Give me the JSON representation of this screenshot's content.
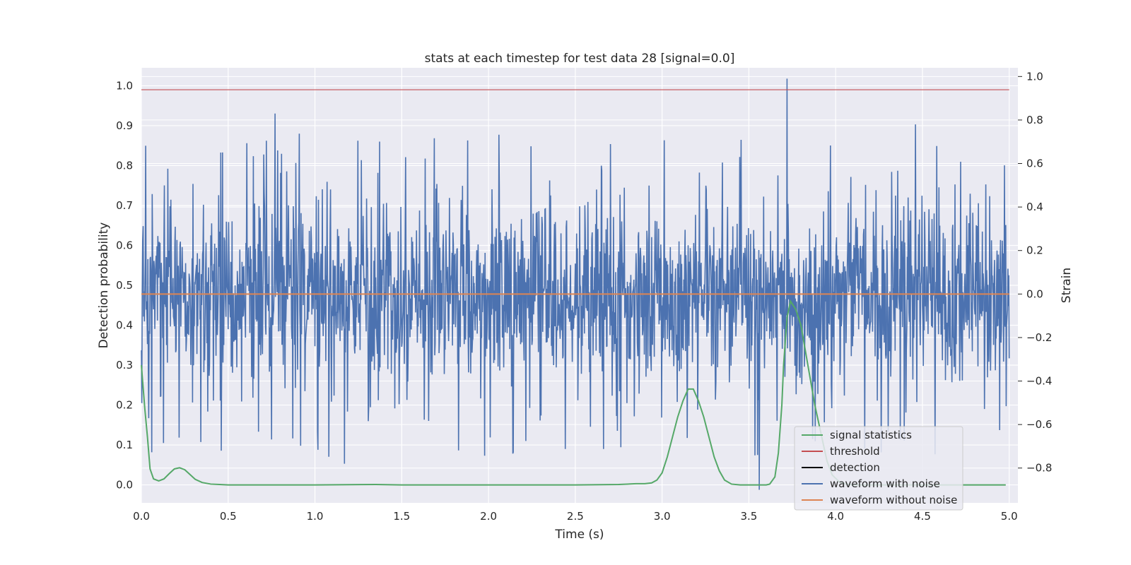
{
  "chart_data": {
    "type": "line",
    "title": "stats at each timestep for test data 28 [signal=0.0]",
    "xlabel": "Time (s)",
    "ylabel": "Detection probability",
    "y2label": "Strain",
    "xlim": [
      0.0,
      5.05
    ],
    "ylim": [
      -0.045,
      1.045
    ],
    "y2lim": [
      -0.96,
      1.04
    ],
    "x_ticks": [
      0.0,
      0.5,
      1.0,
      1.5,
      2.0,
      2.5,
      3.0,
      3.5,
      4.0,
      4.5,
      5.0
    ],
    "x_tick_labels": [
      "0.0",
      "0.5",
      "1.0",
      "1.5",
      "2.0",
      "2.5",
      "3.0",
      "3.5",
      "4.0",
      "4.5",
      "5.0"
    ],
    "y_ticks": [
      0.0,
      0.1,
      0.2,
      0.3,
      0.4,
      0.5,
      0.6,
      0.7,
      0.8,
      0.9,
      1.0
    ],
    "y_tick_labels": [
      "0.0",
      "0.1",
      "0.2",
      "0.3",
      "0.4",
      "0.5",
      "0.6",
      "0.7",
      "0.8",
      "0.9",
      "1.0"
    ],
    "y2_ticks": [
      -0.8,
      -0.6,
      -0.4,
      -0.2,
      0.0,
      0.2,
      0.4,
      0.6,
      0.8,
      1.0
    ],
    "y2_tick_labels": [
      "−0.8",
      "−0.6",
      "−0.4",
      "−0.2",
      "0.0",
      "0.2",
      "0.4",
      "0.6",
      "0.8",
      "1.0"
    ],
    "grid": true,
    "legend_position": "bottom-right",
    "series": [
      {
        "name": "signal statistics",
        "axis": "left",
        "color": "#55a868",
        "x": [
          0.0,
          0.02,
          0.035,
          0.05,
          0.07,
          0.1,
          0.13,
          0.16,
          0.19,
          0.22,
          0.25,
          0.28,
          0.31,
          0.35,
          0.4,
          0.45,
          0.5,
          1.0,
          1.35,
          1.5,
          2.0,
          2.5,
          2.75,
          2.85,
          2.9,
          2.94,
          2.97,
          3.0,
          3.03,
          3.06,
          3.09,
          3.12,
          3.15,
          3.18,
          3.21,
          3.24,
          3.27,
          3.3,
          3.33,
          3.36,
          3.4,
          3.45,
          3.5,
          3.6,
          3.62,
          3.65,
          3.67,
          3.69,
          3.7,
          3.72,
          3.74,
          3.77,
          3.8,
          3.84,
          3.88,
          3.92,
          3.95,
          3.98,
          4.02,
          4.06,
          4.1,
          4.2,
          4.5,
          4.98
        ],
        "y": [
          0.3,
          0.19,
          0.12,
          0.04,
          0.015,
          0.01,
          0.015,
          0.028,
          0.04,
          0.043,
          0.038,
          0.026,
          0.014,
          0.006,
          0.002,
          0.001,
          0.0,
          0.0,
          0.001,
          0.0,
          0.0,
          0.0,
          0.001,
          0.003,
          0.003,
          0.005,
          0.012,
          0.03,
          0.07,
          0.12,
          0.17,
          0.21,
          0.24,
          0.24,
          0.21,
          0.17,
          0.12,
          0.07,
          0.035,
          0.012,
          0.002,
          0.0,
          0.0,
          0.0,
          0.002,
          0.02,
          0.08,
          0.2,
          0.3,
          0.42,
          0.46,
          0.44,
          0.4,
          0.3,
          0.2,
          0.12,
          0.06,
          0.025,
          0.008,
          0.002,
          0.0,
          0.0,
          0.0,
          0.0
        ]
      },
      {
        "name": "threshold",
        "axis": "left",
        "color": "#c44e52",
        "x": [
          0.0,
          5.0
        ],
        "y": [
          0.99,
          0.99
        ]
      },
      {
        "name": "detection",
        "axis": "left",
        "color": "#000000",
        "x": [],
        "y": []
      },
      {
        "name": "waveform with noise",
        "axis": "right",
        "color": "#4c72b0",
        "x_range": [
          0.0,
          5.0
        ],
        "typical_amplitude": 0.28,
        "y_max": 0.99,
        "y_min": -0.9,
        "notable_peaks": [
          {
            "x": 3.72,
            "y": 0.99
          },
          {
            "x": 0.77,
            "y": 0.83
          },
          {
            "x": 4.46,
            "y": 0.78
          },
          {
            "x": 3.56,
            "y": -0.9
          },
          {
            "x": 1.17,
            "y": -0.78
          },
          {
            "x": 0.46,
            "y": -0.72
          }
        ]
      },
      {
        "name": "waveform without noise",
        "axis": "right",
        "color": "#dd8452",
        "x": [
          0.0,
          5.0
        ],
        "y": [
          0.0,
          0.0
        ]
      }
    ]
  }
}
